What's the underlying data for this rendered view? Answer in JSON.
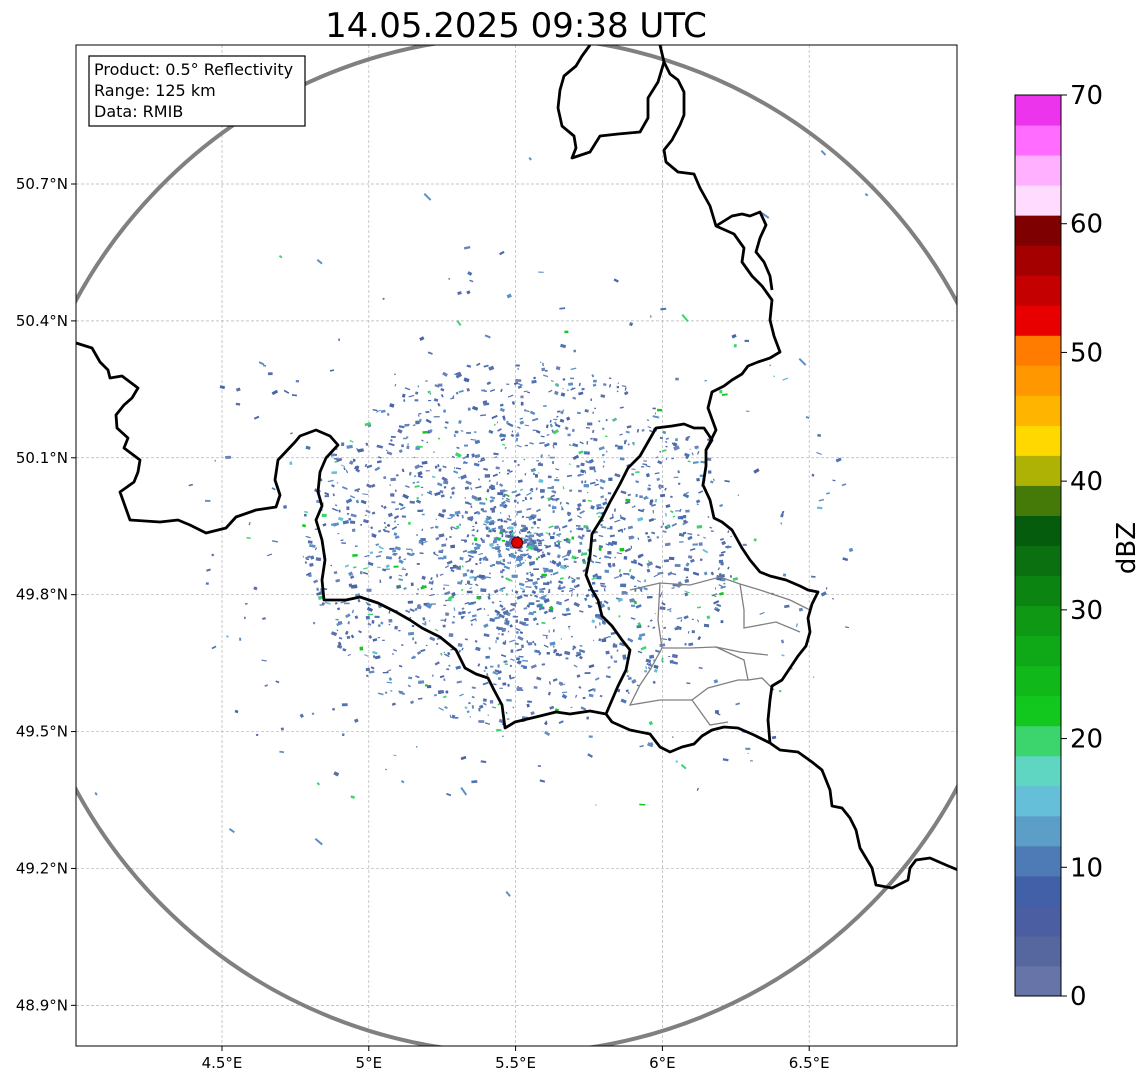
{
  "map": {
    "title": "14.05.2025 09:38 UTC",
    "info_box": {
      "product": "Product: 0.5° Reflectivity",
      "range": "Range: 125 km",
      "data": "Data: RMIB"
    },
    "lon_range": [
      4.0,
      7.0
    ],
    "lat_range": [
      48.8,
      51.0
    ],
    "lon_ticks": [
      {
        "value": 4.5,
        "label": "4.5°E"
      },
      {
        "value": 5.0,
        "label": "5°E"
      },
      {
        "value": 5.5,
        "label": "5.5°E"
      },
      {
        "value": 6.0,
        "label": "6°E"
      },
      {
        "value": 6.5,
        "label": "6.5°E"
      }
    ],
    "lat_ticks": [
      {
        "value": 50.7,
        "label": "50.7°N"
      },
      {
        "value": 50.4,
        "label": "50.4°N"
      },
      {
        "value": 50.1,
        "label": "50.1°N"
      },
      {
        "value": 49.8,
        "label": "49.8°N"
      },
      {
        "value": 49.5,
        "label": "49.5°N"
      },
      {
        "value": 49.2,
        "label": "49.2°N"
      },
      {
        "value": 48.9,
        "label": "48.9°N"
      }
    ],
    "radar_site": {
      "lon": 5.505,
      "lat": 49.914,
      "color": "#e00000"
    },
    "range_ring_color": "#808080",
    "border_color": "#000000",
    "admin_border_color": "#808080",
    "grid": true
  },
  "colorbar": {
    "label": "dBZ",
    "ticks": [
      {
        "value": 0,
        "label": "0"
      },
      {
        "value": 10,
        "label": "10"
      },
      {
        "value": 20,
        "label": "20"
      },
      {
        "value": 30,
        "label": "30"
      },
      {
        "value": 40,
        "label": "40"
      },
      {
        "value": 50,
        "label": "50"
      },
      {
        "value": 60,
        "label": "60"
      },
      {
        "value": 70,
        "label": "70"
      }
    ],
    "min": 0,
    "max": 70,
    "colors": [
      "#6674a8",
      "#56669f",
      "#4a5ea1",
      "#4260a7",
      "#4e7bb5",
      "#5b9ec7",
      "#66bfd9",
      "#5fd6c2",
      "#3cd46c",
      "#12c81e",
      "#10b81a",
      "#0fa816",
      "#0f9814",
      "#0c8412",
      "#0a7010",
      "#055c0c",
      "#457a08",
      "#aeb204",
      "#ffd800",
      "#ffb400",
      "#ff9800",
      "#ff7c00",
      "#e80000",
      "#c40000",
      "#a40000",
      "#7e0000",
      "#ffdcff",
      "#ffb0ff",
      "#ff6cff",
      "#ec34ec"
    ]
  }
}
